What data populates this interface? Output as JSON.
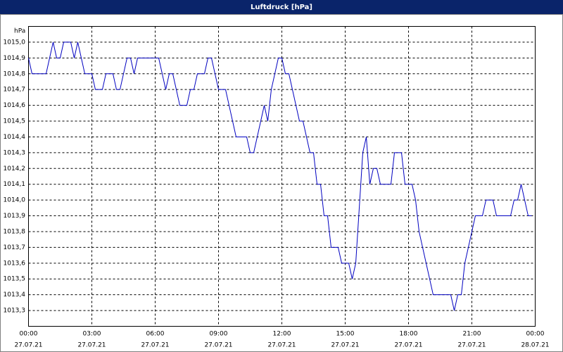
{
  "chart_data": {
    "type": "line",
    "title": "Luftdruck [hPa]",
    "y_unit": "hPa",
    "x": [
      0,
      10,
      50,
      70,
      80,
      90,
      100,
      120,
      130,
      140,
      160,
      180,
      190,
      210,
      220,
      240,
      250,
      260,
      280,
      290,
      300,
      310,
      370,
      390,
      400,
      410,
      430,
      450,
      460,
      470,
      480,
      500,
      510,
      520,
      540,
      560,
      590,
      620,
      630,
      640,
      670,
      680,
      690,
      710,
      720,
      730,
      740,
      770,
      780,
      800,
      810,
      820,
      830,
      840,
      850,
      860,
      880,
      890,
      910,
      920,
      930,
      950,
      960,
      970,
      980,
      990,
      1000,
      1030,
      1040,
      1060,
      1070,
      1090,
      1100,
      1110,
      1150,
      1200,
      1210,
      1220,
      1230,
      1240,
      1270,
      1290,
      1300,
      1320,
      1330,
      1370,
      1380,
      1390,
      1400,
      1410,
      1420,
      1430
    ],
    "series": [
      {
        "name": "Luftdruck",
        "color": "#0000c0",
        "values": [
          1014.9,
          1014.8,
          1014.8,
          1015.0,
          1014.9,
          1014.9,
          1015.0,
          1015.0,
          1014.9,
          1015.0,
          1014.8,
          1014.8,
          1014.7,
          1014.7,
          1014.8,
          1014.8,
          1014.7,
          1014.7,
          1014.9,
          1014.9,
          1014.8,
          1014.9,
          1014.9,
          1014.7,
          1014.8,
          1014.8,
          1014.6,
          1014.6,
          1014.7,
          1014.7,
          1014.8,
          1014.8,
          1014.9,
          1014.9,
          1014.7,
          1014.7,
          1014.4,
          1014.4,
          1014.3,
          1014.3,
          1014.6,
          1014.5,
          1014.7,
          1014.9,
          1014.9,
          1014.8,
          1014.8,
          1014.5,
          1014.5,
          1014.3,
          1014.3,
          1014.1,
          1014.1,
          1013.9,
          1013.9,
          1013.7,
          1013.7,
          1013.6,
          1013.6,
          1013.5,
          1013.6,
          1014.3,
          1014.4,
          1014.1,
          1014.2,
          1014.2,
          1014.1,
          1014.1,
          1014.3,
          1014.3,
          1014.1,
          1014.1,
          1014.0,
          1013.8,
          1013.4,
          1013.4,
          1013.3,
          1013.4,
          1013.4,
          1013.6,
          1013.9,
          1013.9,
          1014.0,
          1014.0,
          1013.9,
          1013.9,
          1014.0,
          1014.0,
          1014.1,
          1014.0,
          1013.9,
          1013.9
        ]
      }
    ],
    "xlim": [
      0,
      1440
    ],
    "xticks": [
      {
        "value": 0,
        "label": "00:00"
      },
      {
        "value": 180,
        "label": "03:00"
      },
      {
        "value": 360,
        "label": "06:00"
      },
      {
        "value": 540,
        "label": "09:00"
      },
      {
        "value": 720,
        "label": "12:00"
      },
      {
        "value": 900,
        "label": "15:00"
      },
      {
        "value": 1080,
        "label": "18:00"
      },
      {
        "value": 1260,
        "label": "21:00"
      },
      {
        "value": 1440,
        "label": "00:00"
      }
    ],
    "xtick_dates": [
      "27.07.21",
      "27.07.21",
      "27.07.21",
      "27.07.21",
      "27.07.21",
      "27.07.21",
      "27.07.21",
      "27.07.21",
      "28.07.21"
    ],
    "ylim": [
      1013.2,
      1015.1
    ],
    "yticks": [
      {
        "value": 1013.3,
        "label": "1013,3"
      },
      {
        "value": 1013.4,
        "label": "1013,4"
      },
      {
        "value": 1013.5,
        "label": "1013,5"
      },
      {
        "value": 1013.6,
        "label": "1013,6"
      },
      {
        "value": 1013.7,
        "label": "1013,7"
      },
      {
        "value": 1013.8,
        "label": "1013,8"
      },
      {
        "value": 1013.9,
        "label": "1013,9"
      },
      {
        "value": 1014.0,
        "label": "1014,0"
      },
      {
        "value": 1014.1,
        "label": "1014,1"
      },
      {
        "value": 1014.2,
        "label": "1014,2"
      },
      {
        "value": 1014.3,
        "label": "1014,3"
      },
      {
        "value": 1014.4,
        "label": "1014,4"
      },
      {
        "value": 1014.5,
        "label": "1014,5"
      },
      {
        "value": 1014.6,
        "label": "1014,6"
      },
      {
        "value": 1014.7,
        "label": "1014,7"
      },
      {
        "value": 1014.8,
        "label": "1014,8"
      },
      {
        "value": 1014.9,
        "label": "1014,9"
      },
      {
        "value": 1015.0,
        "label": "1015,0"
      }
    ],
    "grid": true
  }
}
